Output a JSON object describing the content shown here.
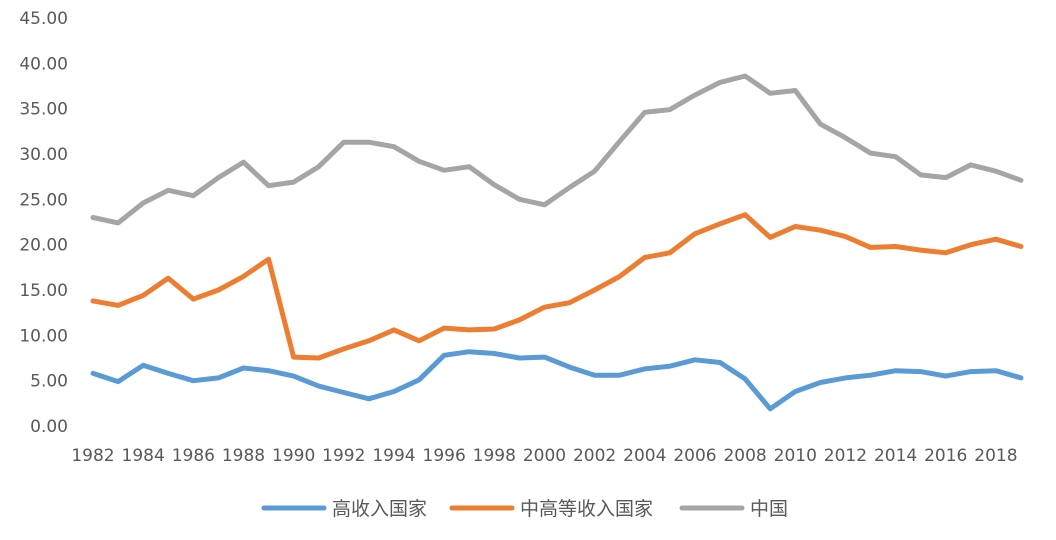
{
  "chart_data": {
    "type": "line",
    "title": "",
    "xlabel": "",
    "ylabel": "",
    "x": [
      1982,
      1983,
      1984,
      1985,
      1986,
      1987,
      1988,
      1989,
      1990,
      1991,
      1992,
      1993,
      1994,
      1995,
      1996,
      1997,
      1998,
      1999,
      2000,
      2001,
      2002,
      2003,
      2004,
      2005,
      2006,
      2007,
      2008,
      2009,
      2010,
      2011,
      2012,
      2013,
      2014,
      2015,
      2016,
      2017,
      2018,
      2019
    ],
    "x_tick_labels": [
      "1982",
      "1984",
      "1986",
      "1988",
      "1990",
      "1992",
      "1994",
      "1996",
      "1998",
      "2000",
      "2002",
      "2004",
      "2006",
      "2008",
      "2010",
      "2012",
      "2014",
      "2016",
      "2018"
    ],
    "y_tick_labels": [
      "0.00",
      "5.00",
      "10.00",
      "15.00",
      "20.00",
      "25.00",
      "30.00",
      "35.00",
      "40.00",
      "45.00"
    ],
    "ylim": [
      0,
      45
    ],
    "grid": false,
    "legend_position": "bottom",
    "series": [
      {
        "name": "高收入国家",
        "color": "#5b9bd5",
        "values": [
          5.8,
          4.9,
          6.7,
          5.8,
          5.0,
          5.3,
          6.4,
          6.1,
          5.5,
          4.4,
          3.7,
          3.0,
          3.8,
          5.1,
          7.8,
          8.2,
          8.0,
          7.5,
          7.6,
          6.5,
          5.6,
          5.6,
          6.3,
          6.6,
          7.3,
          7.0,
          5.2,
          1.9,
          3.8,
          4.8,
          5.3,
          5.6,
          6.1,
          6.0,
          5.5,
          6.0,
          6.1,
          5.3
        ]
      },
      {
        "name": "中高等收入国家",
        "color": "#ed7d31",
        "values": [
          13.8,
          13.3,
          14.4,
          16.3,
          14.0,
          15.0,
          16.5,
          18.4,
          7.6,
          7.5,
          8.5,
          9.4,
          10.6,
          9.4,
          10.8,
          10.6,
          10.7,
          11.7,
          13.1,
          13.6,
          15.0,
          16.5,
          18.6,
          19.1,
          21.2,
          22.3,
          23.3,
          20.8,
          22.0,
          21.6,
          20.9,
          19.7,
          19.8,
          19.4,
          19.1,
          20.0,
          20.6,
          19.8
        ]
      },
      {
        "name": "中国",
        "color": "#a5a5a5",
        "values": [
          23.0,
          22.4,
          24.6,
          26.0,
          25.4,
          27.4,
          29.1,
          26.5,
          26.9,
          28.6,
          31.3,
          31.3,
          30.8,
          29.2,
          28.2,
          28.6,
          26.6,
          25.0,
          24.4,
          26.3,
          28.1,
          31.4,
          34.6,
          34.9,
          36.5,
          37.9,
          38.6,
          36.7,
          37.0,
          33.3,
          31.8,
          30.1,
          29.7,
          27.7,
          27.4,
          28.8,
          28.1,
          27.1
        ]
      }
    ]
  }
}
